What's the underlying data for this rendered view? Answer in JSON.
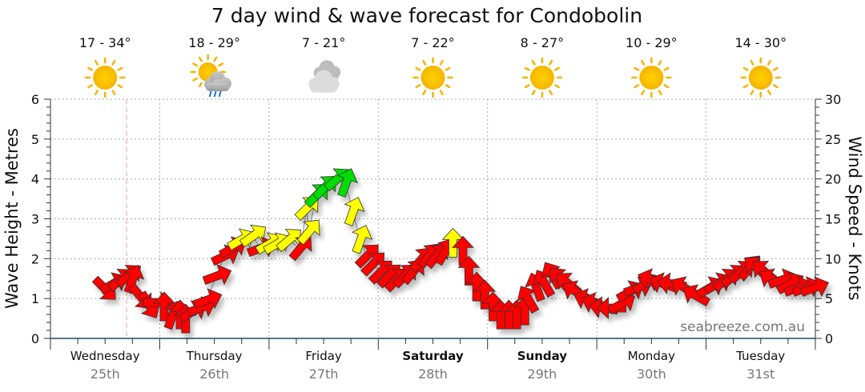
{
  "chart_data": {
    "type": "scatter",
    "title": "7 day wind & wave forecast for Condobolin",
    "ylabel_left": "Wave Height - Metres",
    "ylabel_right": "Wind Speed - Knots",
    "ylim_left": [
      0,
      6
    ],
    "ylim_right": [
      0,
      30
    ],
    "left_ticks": [
      "0",
      "1",
      "2",
      "3",
      "4",
      "5",
      "6"
    ],
    "right_ticks": [
      "0",
      "5",
      "10",
      "15",
      "20",
      "25",
      "30"
    ],
    "grid": true,
    "watermark": "seabreeze.com.au",
    "now_hour": 16.7,
    "days": [
      {
        "name": "Wednesday",
        "date": "25th",
        "temp": "17 - 34°",
        "icon": "sun-icon",
        "bold": false
      },
      {
        "name": "Thursday",
        "date": "26th",
        "temp": "18 - 29°",
        "icon": "sun-cloud-rain-icon",
        "bold": false
      },
      {
        "name": "Friday",
        "date": "27th",
        "temp": "7 - 21°",
        "icon": "cloud-icon",
        "bold": false
      },
      {
        "name": "Saturday",
        "date": "28th",
        "temp": "7 - 22°",
        "icon": "sun-icon",
        "bold": true
      },
      {
        "name": "Sunday",
        "date": "29th",
        "temp": "8 - 27°",
        "icon": "sun-icon",
        "bold": true
      },
      {
        "name": "Monday",
        "date": "30th",
        "temp": "10 - 29°",
        "icon": "sun-icon",
        "bold": false
      },
      {
        "name": "Tuesday",
        "date": "31st",
        "temp": "14 - 30°",
        "icon": "sun-icon",
        "bold": false
      }
    ],
    "colors": {
      "r": "#ff0000",
      "y": "#ffff00",
      "g": "#00dd00"
    },
    "wind_series_fields": [
      "hour_from_wed_0000",
      "knots",
      "arrow_bearing_deg",
      "color"
    ],
    "wind": [
      [
        11.8,
        6.3,
        135,
        "r"
      ],
      [
        13.6,
        6.8,
        60,
        "r"
      ],
      [
        15.3,
        7.3,
        50,
        "r"
      ],
      [
        17.1,
        7.8,
        50,
        "r"
      ],
      [
        18.0,
        7.3,
        20,
        "r"
      ],
      [
        19.7,
        5.3,
        140,
        "r"
      ],
      [
        21.5,
        4.3,
        150,
        "r"
      ],
      [
        23.2,
        4.5,
        90,
        "r"
      ],
      [
        25.0,
        3.8,
        0,
        "r"
      ],
      [
        26.8,
        2.8,
        20,
        "r"
      ],
      [
        28.5,
        2.8,
        0,
        "r"
      ],
      [
        29.7,
        2.3,
        0,
        "r"
      ],
      [
        31.1,
        3.3,
        60,
        "r"
      ],
      [
        32.9,
        3.8,
        70,
        "r"
      ],
      [
        34.3,
        4.8,
        70,
        "r"
      ],
      [
        36.4,
        7.8,
        70,
        "r"
      ],
      [
        38.2,
        10.3,
        65,
        "r"
      ],
      [
        39.9,
        11.3,
        60,
        "r"
      ],
      [
        41.7,
        12.3,
        60,
        "y"
      ],
      [
        44.4,
        12.8,
        55,
        "y"
      ],
      [
        46.1,
        11.3,
        70,
        "r"
      ],
      [
        47.9,
        11.8,
        60,
        "y"
      ],
      [
        49.6,
        11.8,
        60,
        "y"
      ],
      [
        52.3,
        12.3,
        50,
        "y"
      ],
      [
        54.9,
        11.3,
        40,
        "r"
      ],
      [
        56.3,
        16.3,
        45,
        "y"
      ],
      [
        56.7,
        13.3,
        40,
        "y"
      ],
      [
        58.4,
        17.9,
        45,
        "g"
      ],
      [
        60.2,
        18.9,
        45,
        "g"
      ],
      [
        62.8,
        19.9,
        50,
        "g"
      ],
      [
        64.9,
        19.4,
        20,
        "g"
      ],
      [
        66.4,
        15.8,
        20,
        "y"
      ],
      [
        68.1,
        12.3,
        20,
        "y"
      ],
      [
        69.5,
        10.3,
        45,
        "r"
      ],
      [
        70.8,
        9.3,
        45,
        "r"
      ],
      [
        72.5,
        8.3,
        45,
        "r"
      ],
      [
        74.3,
        7.8,
        45,
        "r"
      ],
      [
        76.0,
        7.3,
        45,
        "r"
      ],
      [
        77.8,
        7.8,
        45,
        "r"
      ],
      [
        79.6,
        8.3,
        40,
        "r"
      ],
      [
        81.3,
        9.8,
        40,
        "r"
      ],
      [
        83.1,
        10.3,
        40,
        "r"
      ],
      [
        84.8,
        10.3,
        40,
        "r"
      ],
      [
        86.6,
        10.8,
        30,
        "r"
      ],
      [
        88.4,
        11.8,
        0,
        "y"
      ],
      [
        90.6,
        10.8,
        0,
        "r"
      ],
      [
        91.9,
        8.3,
        0,
        "r"
      ],
      [
        93.6,
        6.3,
        0,
        "r"
      ],
      [
        95.4,
        5.3,
        0,
        "r"
      ],
      [
        97.2,
        3.8,
        0,
        "r"
      ],
      [
        98.9,
        2.8,
        0,
        "r"
      ],
      [
        100.7,
        2.8,
        0,
        "r"
      ],
      [
        102.4,
        2.8,
        0,
        "r"
      ],
      [
        104.2,
        3.3,
        0,
        "r"
      ],
      [
        105.1,
        4.8,
        330,
        "r"
      ],
      [
        106.8,
        6.3,
        340,
        "r"
      ],
      [
        108.6,
        6.8,
        330,
        "r"
      ],
      [
        110.4,
        7.8,
        330,
        "r"
      ],
      [
        112.1,
        7.3,
        320,
        "r"
      ],
      [
        113.9,
        6.8,
        310,
        "r"
      ],
      [
        115.6,
        5.8,
        300,
        "r"
      ],
      [
        118.3,
        4.8,
        290,
        "r"
      ],
      [
        120.0,
        4.3,
        290,
        "r"
      ],
      [
        121.8,
        3.8,
        280,
        "r"
      ],
      [
        123.6,
        3.8,
        270,
        "r"
      ],
      [
        125.3,
        4.3,
        60,
        "r"
      ],
      [
        127.1,
        5.8,
        60,
        "r"
      ],
      [
        128.8,
        6.3,
        70,
        "r"
      ],
      [
        130.6,
        6.8,
        60,
        "r"
      ],
      [
        132.4,
        7.3,
        290,
        "r"
      ],
      [
        135.0,
        6.8,
        290,
        "r"
      ],
      [
        136.8,
        6.8,
        280,
        "r"
      ],
      [
        139.4,
        6.3,
        300,
        "r"
      ],
      [
        142.0,
        5.3,
        300,
        "r"
      ],
      [
        144.7,
        6.3,
        60,
        "r"
      ],
      [
        146.4,
        6.8,
        60,
        "r"
      ],
      [
        148.2,
        7.3,
        50,
        "r"
      ],
      [
        150.0,
        7.8,
        50,
        "r"
      ],
      [
        151.7,
        8.3,
        50,
        "r"
      ],
      [
        153.5,
        8.8,
        40,
        "r"
      ],
      [
        155.2,
        8.8,
        310,
        "r"
      ],
      [
        157.0,
        8.3,
        310,
        "r"
      ],
      [
        158.8,
        7.3,
        300,
        "r"
      ],
      [
        160.5,
        7.3,
        70,
        "r"
      ],
      [
        162.3,
        6.8,
        60,
        "r"
      ],
      [
        164.0,
        6.3,
        70,
        "r"
      ],
      [
        165.8,
        6.3,
        70,
        "r"
      ],
      [
        167.6,
        6.3,
        70,
        "r"
      ]
    ]
  }
}
